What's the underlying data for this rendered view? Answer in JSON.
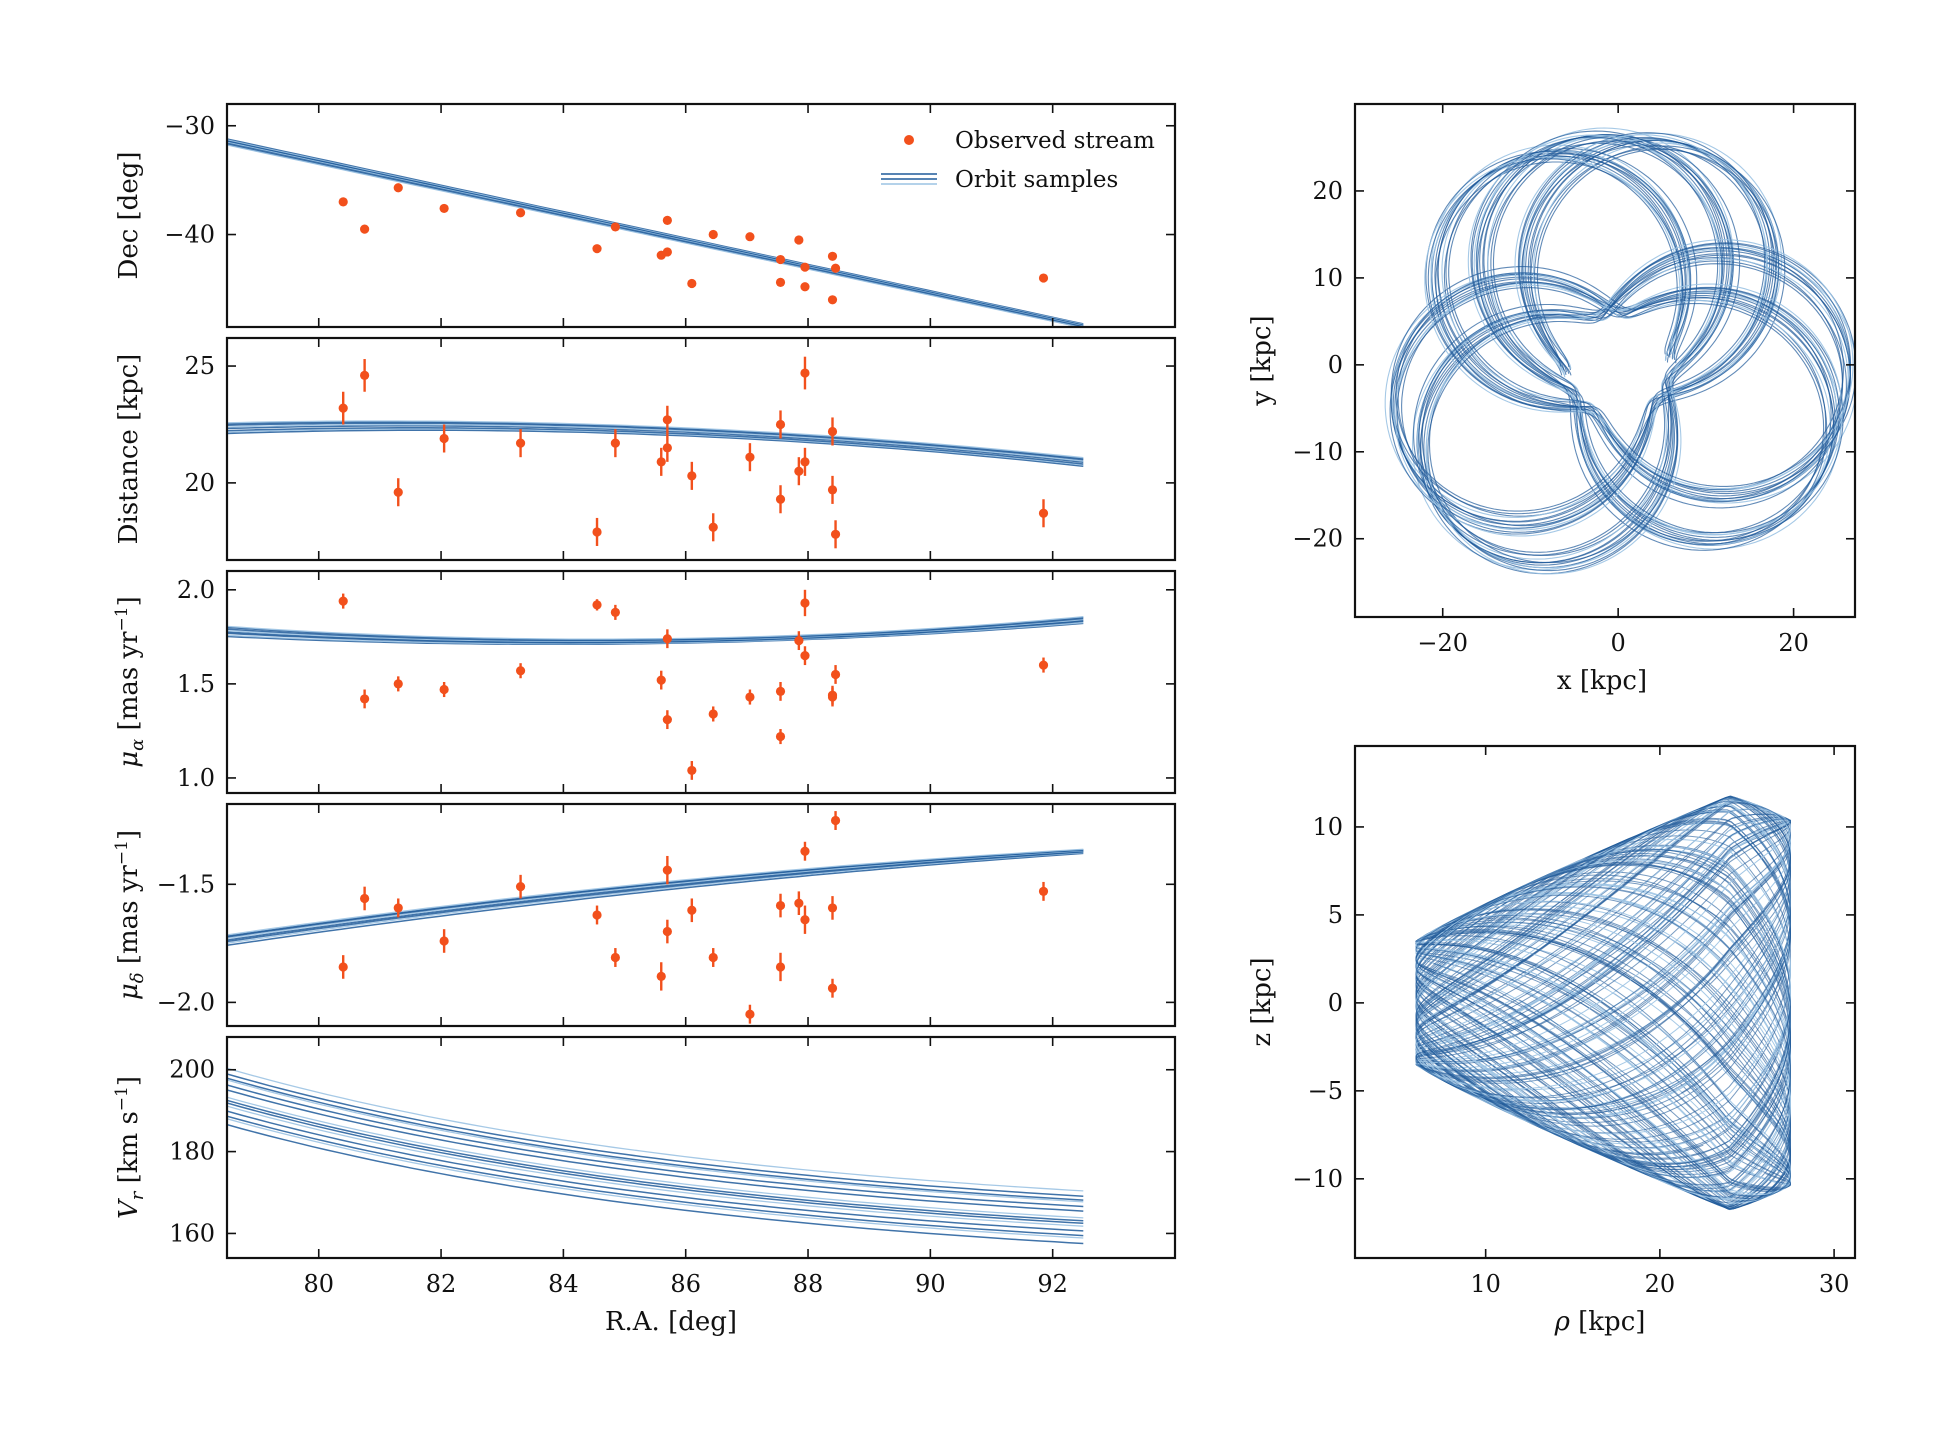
{
  "colors": {
    "observed": "#f2501c",
    "orbit_dark": "#1f5a9a",
    "orbit_light": "#9cc3e3",
    "axes": "#111111"
  },
  "legend": {
    "observed_label": "Observed stream",
    "orbit_label": "Orbit samples",
    "placement": "top-right"
  },
  "chart_data": [
    {
      "id": "dec",
      "type": "scatter+line",
      "ylabel": "Dec [deg]",
      "xlabel": "",
      "xlim": [
        78.5,
        94
      ],
      "ylim": [
        -48.5,
        -28
      ],
      "xticks": [
        80,
        82,
        84,
        86,
        88,
        90,
        92
      ],
      "yticks": [
        -30,
        -40
      ],
      "ytick_labels": [
        "−30",
        "−40"
      ],
      "observed": {
        "name": "Observed stream",
        "x": [
          80.4,
          80.75,
          81.3,
          82.05,
          83.3,
          84.55,
          84.85,
          85.6,
          85.7,
          85.7,
          86.1,
          86.45,
          87.05,
          87.55,
          87.55,
          87.85,
          87.95,
          87.95,
          88.4,
          88.4,
          88.45,
          91.85
        ],
        "y": [
          -37.0,
          -39.5,
          -35.7,
          -37.6,
          -38.0,
          -41.3,
          -39.3,
          -41.9,
          -41.6,
          -38.7,
          -44.5,
          -40.0,
          -40.2,
          -42.3,
          -44.4,
          -40.5,
          -43.0,
          -44.8,
          -42.0,
          -46.0,
          -43.1,
          -44.0
        ],
        "yerr": []
      },
      "orbits": {
        "name": "Orbit samples",
        "x_range": [
          78.5,
          92.5
        ],
        "y_start": [
          -31.2,
          -31.8
        ],
        "y_end": [
          -48.2,
          -48.6
        ],
        "n_samples": 8,
        "shape": "linear"
      }
    },
    {
      "id": "distance",
      "type": "scatter+line",
      "ylabel": "Distance [kpc]",
      "xlabel": "",
      "xlim": [
        78.5,
        94
      ],
      "ylim": [
        16.7,
        26.2
      ],
      "xticks": [
        80,
        82,
        84,
        86,
        88,
        90,
        92
      ],
      "yticks": [
        20,
        25
      ],
      "ytick_labels": [
        "20",
        "25"
      ],
      "observed": {
        "x": [
          80.4,
          80.75,
          81.3,
          82.05,
          83.3,
          84.55,
          84.85,
          85.6,
          85.7,
          85.7,
          86.1,
          86.45,
          87.05,
          87.55,
          87.55,
          87.85,
          87.95,
          87.95,
          88.4,
          88.4,
          88.45,
          91.85
        ],
        "y": [
          23.2,
          24.6,
          19.6,
          21.9,
          21.7,
          17.9,
          21.7,
          20.9,
          21.5,
          22.7,
          20.3,
          18.1,
          21.1,
          19.3,
          22.5,
          20.5,
          24.7,
          20.9,
          22.2,
          19.7,
          17.8,
          18.7
        ],
        "yerr": [
          0.7,
          0.7,
          0.6,
          0.6,
          0.6,
          0.6,
          0.6,
          0.6,
          0.6,
          0.6,
          0.6,
          0.6,
          0.6,
          0.6,
          0.6,
          0.6,
          0.7,
          0.6,
          0.6,
          0.6,
          0.6,
          0.6
        ]
      },
      "orbits": {
        "x_range": [
          78.5,
          92.5
        ],
        "y_start": [
          22.1,
          22.6
        ],
        "y_mid_x": 83.5,
        "y_mid": [
          22.2,
          22.6
        ],
        "y_end": [
          20.7,
          21.1
        ],
        "n_samples": 8,
        "shape": "quadratic"
      }
    },
    {
      "id": "pm_ra",
      "type": "scatter+line",
      "ylabel": "mu_alpha [mas yr^-1]",
      "ylabel_prefix": "μ",
      "ylabel_sub": "α",
      "ylabel_main": " [mas yr",
      "ylabel_sup": "−1",
      "ylabel_end": "]",
      "xlabel": "",
      "xlim": [
        78.5,
        94
      ],
      "ylim": [
        0.92,
        2.1
      ],
      "xticks": [
        80,
        82,
        84,
        86,
        88,
        90,
        92
      ],
      "yticks": [
        1.0,
        1.5,
        2.0
      ],
      "ytick_labels": [
        "1.0",
        "1.5",
        "2.0"
      ],
      "observed": {
        "x": [
          80.4,
          80.75,
          81.3,
          82.05,
          83.3,
          84.55,
          84.85,
          85.6,
          85.7,
          85.7,
          86.1,
          86.45,
          87.05,
          87.55,
          87.55,
          87.85,
          87.95,
          87.95,
          88.4,
          88.4,
          88.45,
          91.85
        ],
        "y": [
          1.94,
          1.42,
          1.5,
          1.47,
          1.57,
          1.92,
          1.88,
          1.52,
          1.74,
          1.31,
          1.04,
          1.34,
          1.43,
          1.46,
          1.22,
          1.73,
          1.65,
          1.93,
          1.43,
          1.44,
          1.55,
          1.6
        ],
        "yerr": [
          0.04,
          0.05,
          0.04,
          0.04,
          0.04,
          0.03,
          0.04,
          0.05,
          0.05,
          0.05,
          0.05,
          0.04,
          0.04,
          0.05,
          0.04,
          0.05,
          0.05,
          0.07,
          0.05,
          0.05,
          0.05,
          0.04
        ]
      },
      "orbits": {
        "x_range": [
          78.5,
          92.5
        ],
        "y_start": [
          1.75,
          1.81
        ],
        "y_mid_x": 84.5,
        "y_mid": [
          1.71,
          1.74
        ],
        "y_end": [
          1.82,
          1.86
        ],
        "n_samples": 8,
        "shape": "quadratic"
      }
    },
    {
      "id": "pm_dec",
      "type": "scatter+line",
      "ylabel": "mu_delta [mas yr^-1]",
      "ylabel_prefix": "μ",
      "ylabel_sub": "δ",
      "ylabel_main": " [mas yr",
      "ylabel_sup": "−1",
      "ylabel_end": "]",
      "xlabel": "",
      "xlim": [
        78.5,
        94
      ],
      "ylim": [
        -2.1,
        -1.16
      ],
      "xticks": [
        80,
        82,
        84,
        86,
        88,
        90,
        92
      ],
      "yticks": [
        -1.5,
        -2.0
      ],
      "ytick_labels": [
        "−1.5",
        "−2.0"
      ],
      "observed": {
        "x": [
          80.4,
          80.75,
          81.3,
          82.05,
          83.3,
          84.55,
          84.85,
          85.6,
          85.7,
          85.7,
          86.1,
          86.45,
          87.05,
          87.55,
          87.55,
          87.85,
          87.95,
          87.95,
          88.4,
          88.4,
          88.45,
          91.85
        ],
        "y": [
          -1.85,
          -1.56,
          -1.6,
          -1.74,
          -1.51,
          -1.63,
          -1.81,
          -1.89,
          -1.7,
          -1.44,
          -1.61,
          -1.81,
          -2.05,
          -1.59,
          -1.85,
          -1.58,
          -1.65,
          -1.36,
          -1.6,
          -1.94,
          -1.23,
          -1.53
        ],
        "yerr": [
          0.05,
          0.05,
          0.04,
          0.05,
          0.05,
          0.04,
          0.04,
          0.06,
          0.05,
          0.06,
          0.05,
          0.04,
          0.04,
          0.05,
          0.06,
          0.05,
          0.06,
          0.04,
          0.05,
          0.04,
          0.04,
          0.04
        ]
      },
      "orbits": {
        "x_range": [
          78.5,
          92.5
        ],
        "y_start": [
          -1.76,
          -1.71
        ],
        "y_mid_x": 85.5,
        "y_mid": [
          -1.53,
          -1.49
        ],
        "y_end": [
          -1.37,
          -1.35
        ],
        "n_samples": 8,
        "shape": "quadratic"
      }
    },
    {
      "id": "vr",
      "type": "line",
      "ylabel": "V_r [km s^-1]",
      "ylabel_prefix": "V",
      "ylabel_sub": "r",
      "ylabel_main": " [km s",
      "ylabel_sup": "−1",
      "ylabel_end": "]",
      "xlabel": "R.A. [deg]",
      "xlim": [
        78.5,
        94
      ],
      "ylim": [
        154,
        208
      ],
      "xticks": [
        80,
        82,
        84,
        86,
        88,
        90,
        92
      ],
      "xtick_labels": [
        "80",
        "82",
        "84",
        "86",
        "88",
        "90",
        "92"
      ],
      "yticks": [
        160,
        180,
        200
      ],
      "ytick_labels": [
        "160",
        "180",
        "200"
      ],
      "orbits": {
        "x_range": [
          78.5,
          92.5
        ],
        "y_start": [
          186,
          201
        ],
        "y_end": [
          157,
          171
        ],
        "n_samples": 14,
        "shape": "decay"
      }
    },
    {
      "id": "xy",
      "type": "orbit-xy",
      "xlabel": "x [kpc]",
      "ylabel": "y [kpc]",
      "xlim": [
        -30,
        27
      ],
      "ylim": [
        -29,
        30
      ],
      "xticks": [
        -20,
        0,
        20
      ],
      "xtick_labels": [
        "−20",
        "0",
        "20"
      ],
      "yticks": [
        20,
        10,
        0,
        -10,
        -20
      ],
      "ytick_labels": [
        "20",
        "10",
        "0",
        "−10",
        "−20"
      ],
      "orbit": {
        "pericenter": 6.0,
        "apocenter": 26.5,
        "petals": 7,
        "n_samples": 14
      }
    },
    {
      "id": "rz",
      "type": "orbit-rz",
      "xlabel": "rho [kpc]",
      "ylabel": "z [kpc]",
      "xlim": [
        2.5,
        31.2
      ],
      "ylim": [
        -14.5,
        14.6
      ],
      "xticks": [
        10,
        20,
        30
      ],
      "xtick_labels": [
        "10",
        "20",
        "30"
      ],
      "yticks": [
        10,
        5,
        0,
        -5,
        -10
      ],
      "ytick_labels": [
        "10",
        "5",
        "0",
        "−5",
        "−10"
      ],
      "orbit": {
        "rho_min": 6.0,
        "rho_max": 27.5,
        "z_max": 13.2,
        "n_samples": 14
      }
    }
  ]
}
